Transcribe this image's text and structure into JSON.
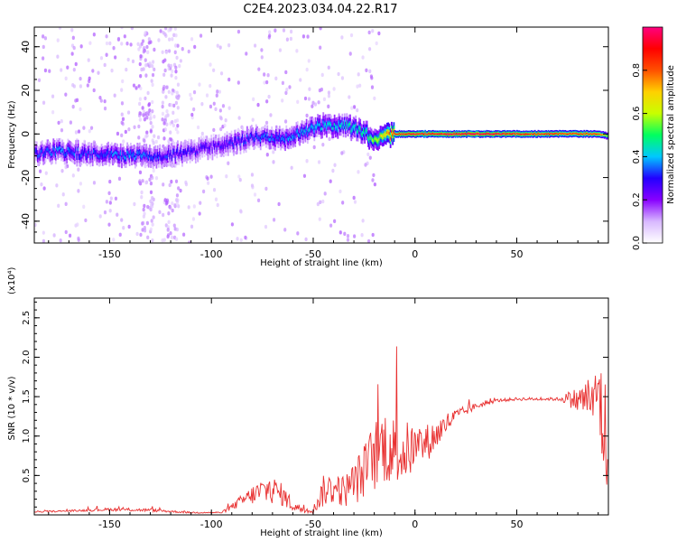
{
  "figure": {
    "title": "C2E4.2023.034.04.22.R17"
  },
  "chart_data": [
    {
      "type": "heatmap",
      "title": "",
      "xlabel": "Height of straight line (km)",
      "ylabel": "Frequency (Hz)",
      "xlim": [
        -187,
        95
      ],
      "ylim": [
        -50,
        49
      ],
      "xticks": [
        -150,
        -100,
        -50,
        0,
        50
      ],
      "yticks": [
        -40,
        -20,
        0,
        20,
        40
      ],
      "colorbar": {
        "label": "Normalized spectral amplitude",
        "range": [
          0,
          1
        ],
        "ticks": [
          0.0,
          0.2,
          0.4,
          0.6,
          0.8
        ],
        "colormap": [
          "#ffffff",
          "#d8b8ff",
          "#8800ff",
          "#2200ff",
          "#00c8ff",
          "#00ff60",
          "#c8ff00",
          "#ffd000",
          "#ff5000",
          "#ff0000",
          "#ff0080"
        ]
      },
      "ridge": {
        "x": [
          -187,
          -175,
          -165,
          -155,
          -145,
          -135,
          -125,
          -115,
          -105,
          -95,
          -85,
          -75,
          -65,
          -55,
          -45,
          -35,
          -25,
          -20,
          -15,
          -10,
          0,
          10,
          30,
          50,
          70,
          90,
          95
        ],
        "freq": [
          -9,
          -8,
          -9,
          -9,
          -10,
          -10,
          -10,
          -9,
          -7,
          -5,
          -3,
          -1,
          -2,
          1,
          4,
          4,
          1,
          -3,
          -1,
          0,
          0,
          0,
          0,
          0,
          0,
          0,
          -1
        ],
        "amp": [
          0.3,
          0.35,
          0.32,
          0.3,
          0.36,
          0.35,
          0.3,
          0.28,
          0.26,
          0.26,
          0.3,
          0.33,
          0.34,
          0.37,
          0.4,
          0.42,
          0.45,
          0.55,
          0.65,
          0.85,
          0.9,
          0.9,
          0.95,
          0.88,
          0.85,
          0.82,
          0.55
        ]
      }
    },
    {
      "type": "line",
      "title": "",
      "xlabel": "Height of straight line (km)",
      "ylabel": "SNR (10 * v/v)",
      "y_multiplier": "(x10⁴)",
      "xlim": [
        -187,
        95
      ],
      "ylim": [
        0,
        2.75
      ],
      "xticks": [
        -150,
        -100,
        -50,
        0,
        50
      ],
      "yticks": [
        0.5,
        1.0,
        1.5,
        2.0,
        2.5
      ],
      "line_color": "#e83030",
      "series": [
        {
          "x": [
            -187,
            -170,
            -150,
            -130,
            -110,
            -95,
            -90,
            -85,
            -80,
            -75,
            -70,
            -65,
            -60,
            -55,
            -50,
            -45,
            -40,
            -35,
            -30,
            -25,
            -20,
            -15,
            -10,
            -5,
            0,
            5,
            10,
            15,
            20,
            25,
            30,
            40,
            50,
            60,
            70,
            75,
            80,
            85,
            88,
            90,
            92,
            94,
            95
          ],
          "y": [
            0.04,
            0.05,
            0.07,
            0.06,
            0.03,
            0.03,
            0.1,
            0.18,
            0.25,
            0.3,
            0.32,
            0.25,
            0.12,
            0.06,
            0.06,
            0.3,
            0.35,
            0.3,
            0.4,
            0.55,
            0.75,
            0.9,
            0.8,
            0.8,
            0.85,
            0.9,
            1.0,
            1.15,
            1.25,
            1.32,
            1.38,
            1.45,
            1.47,
            1.47,
            1.47,
            1.48,
            1.45,
            1.48,
            1.4,
            1.6,
            1.2,
            1.0,
            0.3
          ],
          "noise": [
            0.01,
            0.01,
            0.02,
            0.02,
            0.01,
            0.01,
            0.04,
            0.08,
            0.12,
            0.18,
            0.18,
            0.14,
            0.08,
            0.04,
            0.04,
            0.2,
            0.22,
            0.2,
            0.28,
            0.35,
            0.45,
            0.5,
            0.45,
            0.4,
            0.3,
            0.25,
            0.2,
            0.15,
            0.1,
            0.06,
            0.04,
            0.02,
            0.02,
            0.02,
            0.02,
            0.08,
            0.18,
            0.25,
            0.3,
            0.6,
            0.8,
            0.7,
            0.3
          ]
        }
      ]
    }
  ]
}
